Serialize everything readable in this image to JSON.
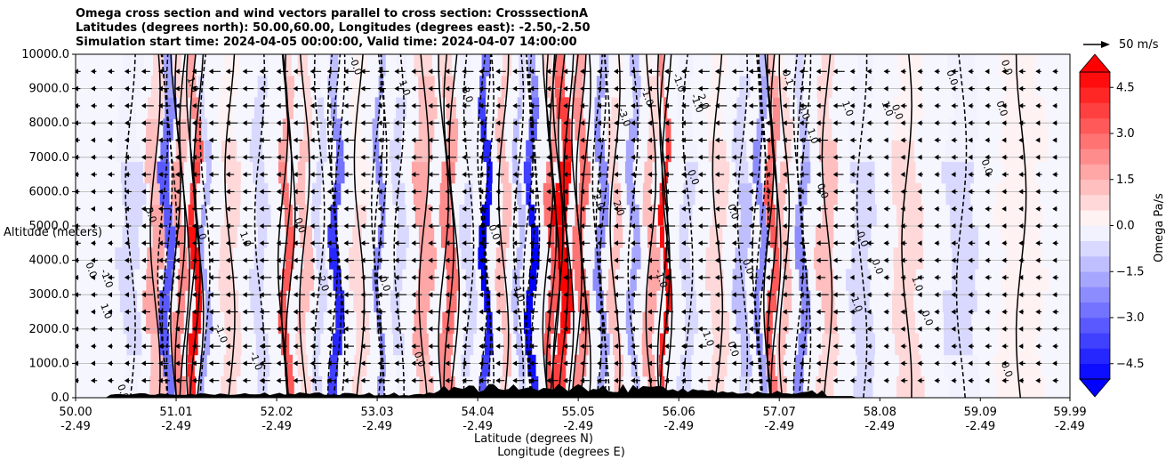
{
  "chart_data": {
    "type": "heatmap",
    "title_lines": [
      "Omega cross section and wind vectors parallel to cross section: CrosssectionA",
      "Latitudes (degrees north): 50.00,60.00, Longitudes (degrees east): -2.50,-2.50",
      "Simulation start time: 2024-04-05 00:00:00, Valid time: 2024-04-07 14:00:00"
    ],
    "ylabel": "Altitude (meters)",
    "xlabel_lat": "Latitude (degrees N)",
    "xlabel_lon": "Longitude (degrees E)",
    "ylim": [
      0,
      10000
    ],
    "yticks": [
      0,
      1000,
      2000,
      3000,
      4000,
      5000,
      6000,
      7000,
      8000,
      9000,
      10000
    ],
    "ytick_labels": [
      "0.0",
      "1000.0",
      "2000.0",
      "3000.0",
      "4000.0",
      "5000.0",
      "6000.0",
      "7000.0",
      "8000.0",
      "9000.0",
      "10000.0"
    ],
    "xlim": [
      50.0,
      59.99
    ],
    "xticks_lat": [
      50.0,
      51.01,
      52.02,
      53.03,
      54.04,
      55.05,
      56.06,
      57.07,
      58.08,
      59.09,
      59.99
    ],
    "xtick_labels_lat": [
      "50.00",
      "51.01",
      "52.02",
      "53.03",
      "54.04",
      "55.05",
      "56.06",
      "57.07",
      "58.08",
      "59.09",
      "59.99"
    ],
    "xtick_labels_lon": [
      "-2.49",
      "-2.49",
      "-2.49",
      "-2.49",
      "-2.49",
      "-2.49",
      "-2.49",
      "-2.49",
      "-2.49",
      "-2.49",
      "-2.49"
    ],
    "grid": true,
    "colorbar": {
      "label": "Omega Pa/s",
      "vmin": -5.0,
      "vmax": 5.0,
      "levels": [
        -5.0,
        -4.5,
        -4.0,
        -3.5,
        -3.0,
        -2.5,
        -2.0,
        -1.5,
        -1.0,
        -0.5,
        0.0,
        0.5,
        1.0,
        1.5,
        2.0,
        2.5,
        3.0,
        3.5,
        4.0,
        4.5,
        5.0
      ],
      "ticks": [
        -4.5,
        -3.0,
        -1.5,
        0.0,
        1.5,
        3.0,
        4.5
      ],
      "tick_labels": [
        "−4.5",
        "−3.0",
        "−1.5",
        "0.0",
        "1.5",
        "3.0",
        "4.5"
      ],
      "extend": "both",
      "cmap": "bwr",
      "neg_color": "#0000ff",
      "pos_color": "#ff0000"
    },
    "quiver_reference": {
      "label": "50 m/s",
      "speed": 50
    },
    "omega_bands": [
      {
        "lat": 50.55,
        "value": -0.6,
        "width": 0.2
      },
      {
        "lat": 50.8,
        "value": 1.6,
        "width": 0.15
      },
      {
        "lat": 50.92,
        "value": -3.5,
        "width": 0.1
      },
      {
        "lat": 51.05,
        "value": 2.5,
        "width": 0.1
      },
      {
        "lat": 51.2,
        "value": 4.8,
        "width": 0.08
      },
      {
        "lat": 51.3,
        "value": -2.0,
        "width": 0.06
      },
      {
        "lat": 51.55,
        "value": 0.8,
        "width": 0.15
      },
      {
        "lat": 51.85,
        "value": -0.9,
        "width": 0.12
      },
      {
        "lat": 52.12,
        "value": 3.5,
        "width": 0.08
      },
      {
        "lat": 52.3,
        "value": 1.2,
        "width": 0.1
      },
      {
        "lat": 52.45,
        "value": -0.8,
        "width": 0.08
      },
      {
        "lat": 52.62,
        "value": -4.2,
        "width": 0.08
      },
      {
        "lat": 52.85,
        "value": 0.6,
        "width": 0.12
      },
      {
        "lat": 53.05,
        "value": -2.5,
        "width": 0.06
      },
      {
        "lat": 53.25,
        "value": -0.7,
        "width": 0.1
      },
      {
        "lat": 53.5,
        "value": 1.8,
        "width": 0.15
      },
      {
        "lat": 53.75,
        "value": 2.6,
        "width": 0.12
      },
      {
        "lat": 53.95,
        "value": -0.6,
        "width": 0.1
      },
      {
        "lat": 54.12,
        "value": -5.2,
        "width": 0.07
      },
      {
        "lat": 54.3,
        "value": 1.5,
        "width": 0.08
      },
      {
        "lat": 54.45,
        "value": -1.5,
        "width": 0.06
      },
      {
        "lat": 54.58,
        "value": -5.2,
        "width": 0.07
      },
      {
        "lat": 54.78,
        "value": 3.5,
        "width": 0.08
      },
      {
        "lat": 54.9,
        "value": 5.2,
        "width": 0.12
      },
      {
        "lat": 55.08,
        "value": 3.0,
        "width": 0.1
      },
      {
        "lat": 55.28,
        "value": -2.5,
        "width": 0.08
      },
      {
        "lat": 55.42,
        "value": 1.5,
        "width": 0.08
      },
      {
        "lat": 55.6,
        "value": -2.0,
        "width": 0.08
      },
      {
        "lat": 55.78,
        "value": 1.8,
        "width": 0.1
      },
      {
        "lat": 55.92,
        "value": 4.8,
        "width": 0.05
      },
      {
        "lat": 56.15,
        "value": -0.8,
        "width": 0.12
      },
      {
        "lat": 56.45,
        "value": 1.0,
        "width": 0.15
      },
      {
        "lat": 56.7,
        "value": -1.2,
        "width": 0.12
      },
      {
        "lat": 56.88,
        "value": -2.5,
        "width": 0.07
      },
      {
        "lat": 57.0,
        "value": 3.5,
        "width": 0.08
      },
      {
        "lat": 57.12,
        "value": 1.5,
        "width": 0.08
      },
      {
        "lat": 57.3,
        "value": -2.5,
        "width": 0.08
      },
      {
        "lat": 57.55,
        "value": 1.2,
        "width": 0.15
      },
      {
        "lat": 57.9,
        "value": -0.7,
        "width": 0.2
      },
      {
        "lat": 58.35,
        "value": 0.7,
        "width": 0.25
      },
      {
        "lat": 58.9,
        "value": -0.6,
        "width": 0.3
      },
      {
        "lat": 59.5,
        "value": 0.5,
        "width": 0.4
      }
    ],
    "contour_labels": [
      {
        "lat": 50.1,
        "alt": 3900,
        "text": "0.0"
      },
      {
        "lat": 50.25,
        "alt": 3700,
        "text": "-1.0"
      },
      {
        "lat": 50.25,
        "alt": 2700,
        "text": "1.0"
      },
      {
        "lat": 50.42,
        "alt": 350,
        "text": "0.0"
      },
      {
        "lat": 50.7,
        "alt": 5500,
        "text": "3.0"
      },
      {
        "lat": 51.2,
        "alt": 5000,
        "text": "1.0"
      },
      {
        "lat": 51.12,
        "alt": 9300,
        "text": "1.0"
      },
      {
        "lat": 51.4,
        "alt": 2100,
        "text": "-1.0"
      },
      {
        "lat": 51.65,
        "alt": 4800,
        "text": "1.0"
      },
      {
        "lat": 51.75,
        "alt": 1300,
        "text": "-1.0"
      },
      {
        "lat": 52.2,
        "alt": 5200,
        "text": "0.0"
      },
      {
        "lat": 52.42,
        "alt": 3600,
        "text": "-2.0"
      },
      {
        "lat": 52.75,
        "alt": 9900,
        "text": "-0.0"
      },
      {
        "lat": 53.05,
        "alt": 3500,
        "text": "0.0"
      },
      {
        "lat": 53.25,
        "alt": 9200,
        "text": "1.0"
      },
      {
        "lat": 53.4,
        "alt": 1300,
        "text": "0.0"
      },
      {
        "lat": 53.88,
        "alt": 9000,
        "text": "3.0"
      },
      {
        "lat": 54.15,
        "alt": 5000,
        "text": "0.0"
      },
      {
        "lat": 54.4,
        "alt": 3200,
        "text": "1.0"
      },
      {
        "lat": 55.2,
        "alt": 5900,
        "text": "2.0"
      },
      {
        "lat": 55.4,
        "alt": 5700,
        "text": "2.0"
      },
      {
        "lat": 55.45,
        "alt": 8400,
        "text": "-3.0"
      },
      {
        "lat": 55.68,
        "alt": 9000,
        "text": "-1.0"
      },
      {
        "lat": 55.82,
        "alt": 3700,
        "text": "-1.0"
      },
      {
        "lat": 56.0,
        "alt": 9400,
        "text": "-1.0"
      },
      {
        "lat": 56.18,
        "alt": 8800,
        "text": "-1.0"
      },
      {
        "lat": 56.25,
        "alt": 8800,
        "text": "2.0"
      },
      {
        "lat": 56.15,
        "alt": 6600,
        "text": "0.0"
      },
      {
        "lat": 56.55,
        "alt": 5600,
        "text": "0.0"
      },
      {
        "lat": 56.3,
        "alt": 1900,
        "text": "1.0"
      },
      {
        "lat": 56.55,
        "alt": 1600,
        "text": "0.0"
      },
      {
        "lat": 56.7,
        "alt": 4000,
        "text": "0.0"
      },
      {
        "lat": 57.1,
        "alt": 9500,
        "text": "0.1"
      },
      {
        "lat": 57.25,
        "alt": 8600,
        "text": "-0.0"
      },
      {
        "lat": 57.35,
        "alt": 7800,
        "text": "1.0"
      },
      {
        "lat": 57.45,
        "alt": 6200,
        "text": "0.0"
      },
      {
        "lat": 57.7,
        "alt": 8600,
        "text": "1.0"
      },
      {
        "lat": 58.0,
        "alt": 4000,
        "text": "0.0"
      },
      {
        "lat": 57.85,
        "alt": 4800,
        "text": "0.0"
      },
      {
        "lat": 57.78,
        "alt": 3000,
        "text": "-1.0"
      },
      {
        "lat": 58.2,
        "alt": 8500,
        "text": "0.0"
      },
      {
        "lat": 58.4,
        "alt": 3500,
        "text": "1.0"
      },
      {
        "lat": 58.5,
        "alt": 2500,
        "text": "0.0"
      },
      {
        "lat": 58.75,
        "alt": 9500,
        "text": "0.0"
      },
      {
        "lat": 59.1,
        "alt": 6900,
        "text": "0.0"
      },
      {
        "lat": 59.25,
        "alt": 8600,
        "text": "0.0"
      },
      {
        "lat": 59.3,
        "alt": 9800,
        "text": "0.0"
      },
      {
        "lat": 59.3,
        "alt": 1000,
        "text": "0.0"
      },
      {
        "lat": 58.1,
        "alt": 8600,
        "text": "1.0"
      }
    ],
    "colors": {
      "grid": "#b0b0b0",
      "terrain": "#000000"
    }
  }
}
